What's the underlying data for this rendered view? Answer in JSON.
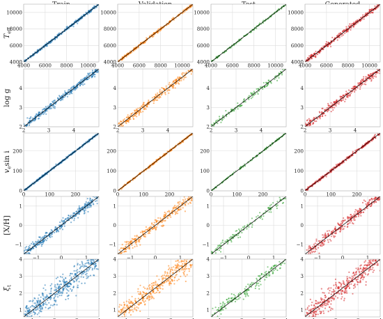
{
  "chart_data": {
    "type": "scatter",
    "columns": [
      {
        "title": "Train",
        "color": "#1f77b4"
      },
      {
        "title": "Validation",
        "color": "#ff7f0e"
      },
      {
        "title": "Test",
        "color": "#2ca02c"
      },
      {
        "title": "Generated",
        "color": "#d62728"
      }
    ],
    "line_color": "#000000",
    "rows": [
      {
        "label": "T_eff",
        "label_main": "T",
        "label_sub": "eff",
        "xlim": [
          4000,
          11000
        ],
        "ylim": [
          4000,
          11000
        ],
        "xticks": [
          4000,
          6000,
          8000,
          10000
        ],
        "yticks": [
          4000,
          6000,
          8000,
          10000
        ],
        "scatter": [
          0.012,
          0.012,
          0.01,
          0.02
        ],
        "counts": [
          330,
          280,
          130,
          300
        ]
      },
      {
        "label": "log g",
        "label_main": "log g",
        "label_sub": "",
        "xlim": [
          2,
          5
        ],
        "ylim": [
          2,
          5
        ],
        "xticks": [
          2,
          3,
          4
        ],
        "yticks": [
          2,
          3,
          4
        ],
        "scatter": [
          0.03,
          0.035,
          0.025,
          0.035
        ],
        "counts": [
          330,
          280,
          130,
          300
        ]
      },
      {
        "label": "v_e sin i",
        "label_main": "v",
        "label_sub": "e",
        "label_tail": "sin i",
        "xlim": [
          0,
          290
        ],
        "ylim": [
          0,
          290
        ],
        "xticks": [
          0,
          100,
          200
        ],
        "yticks": [
          0,
          100,
          200
        ],
        "scatter": [
          0.008,
          0.008,
          0.008,
          0.012
        ],
        "counts": [
          330,
          280,
          130,
          300
        ]
      },
      {
        "label": "[X/H]",
        "label_main": "[X/H]",
        "label_sub": "",
        "xlim": [
          -1.5,
          1.5
        ],
        "ylim": [
          -1.5,
          1.5
        ],
        "xticks": [
          -1,
          0,
          1
        ],
        "yticks": [
          -1,
          0,
          1
        ],
        "scatter": [
          0.04,
          0.05,
          0.035,
          0.05
        ],
        "counts": [
          330,
          280,
          130,
          300
        ]
      },
      {
        "label": "ξ_t",
        "label_main": "ξ",
        "label_sub": "t",
        "xlim": [
          0.6,
          4
        ],
        "ylim": [
          0.6,
          4
        ],
        "xticks": [
          1,
          2,
          3,
          4
        ],
        "yticks": [
          1,
          2,
          3,
          4
        ],
        "scatter": [
          0.1,
          0.09,
          0.05,
          0.09
        ],
        "counts": [
          450,
          380,
          170,
          420
        ]
      }
    ]
  }
}
